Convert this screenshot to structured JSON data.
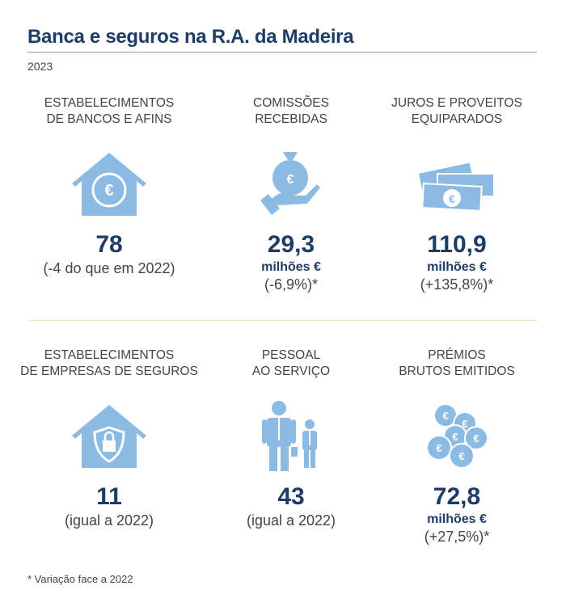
{
  "title": "Banca e seguros na R.A. da Madeira",
  "year": "2023",
  "colors": {
    "accent": "#1d3d66",
    "icon": "#8bbbe3",
    "separator": "#f3e9b4"
  },
  "cards": [
    {
      "label1": "ESTABELECIMENTOS",
      "label2": "DE BANCOS E AFINS",
      "value": "78",
      "unit": "",
      "note": "(-4 do que em 2022)",
      "icon": "house-euro-icon"
    },
    {
      "label1": "COMISSÕES",
      "label2": "RECEBIDAS",
      "value": "29,3",
      "unit": "milhões €",
      "note": "(-6,9%)*",
      "icon": "hand-money-bag-icon"
    },
    {
      "label1": "JUROS E PROVEITOS",
      "label2": "EQUIPARADOS",
      "value": "110,9",
      "unit": "milhões €",
      "note": "(+135,8%)*",
      "icon": "banknotes-icon"
    },
    {
      "label1": "ESTABELECIMENTOS",
      "label2": "DE EMPRESAS DE SEGUROS",
      "value": "11",
      "unit": "",
      "note": "(igual a 2022)",
      "icon": "house-shield-icon"
    },
    {
      "label1": "PESSOAL",
      "label2": "AO SERVIÇO",
      "value": "43",
      "unit": "",
      "note": "(igual a 2022)",
      "icon": "people-icon"
    },
    {
      "label1": "PRÉMIOS",
      "label2": "BRUTOS EMITIDOS",
      "value": "72,8",
      "unit": "milhões €",
      "note": "(+27,5%)*",
      "icon": "coins-icon"
    }
  ],
  "footnote": "* Variação face a 2022"
}
